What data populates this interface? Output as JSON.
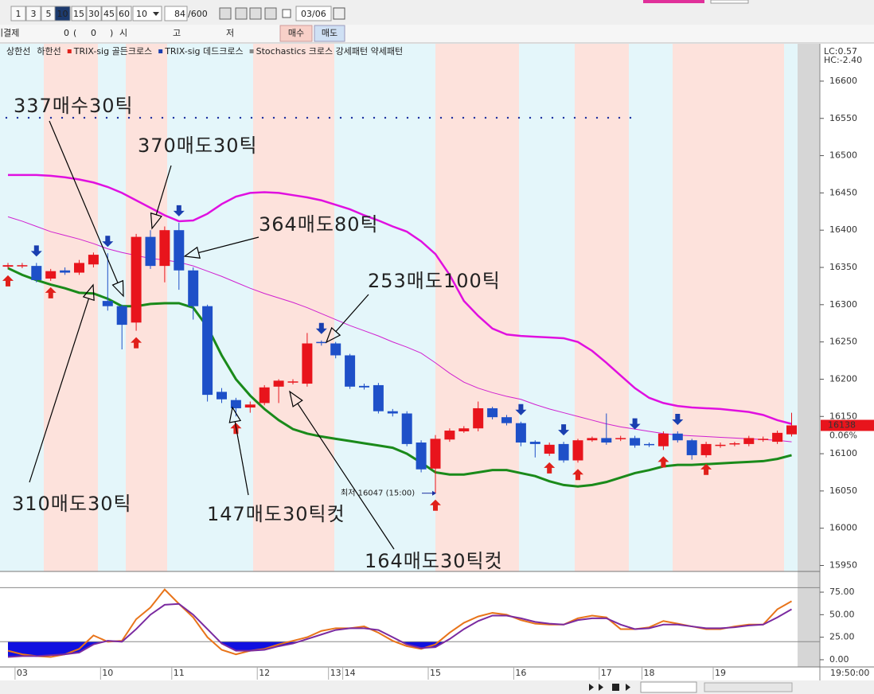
{
  "toolbar": {
    "periods": [
      1,
      3,
      5,
      10,
      15,
      30,
      45,
      60
    ],
    "period_select": 10,
    "count": 84,
    "count_max": "/600",
    "date": "03/06",
    "row2": {
      "open_interest": "미결제",
      "oi_value": "0",
      "paren_open": "(",
      "oi_change": "0",
      "paren_close": ")",
      "open": "시",
      "high": "고",
      "low": "저",
      "buy": "매수",
      "sell": "매도"
    }
  },
  "chart_data": [
    {
      "type": "candlestick",
      "legend": {
        "upper_text": "상한선",
        "lower_text": "하한선",
        "signals": [
          {
            "name": "TRIX-sig 골든크로스",
            "color": "#e0201a"
          },
          {
            "name": "TRIX-sig 데드크로스",
            "color": "#1a3fb0"
          }
        ],
        "pattern_text": "Stochastics 크로스 강세패턴  약세패턴"
      },
      "lc_label": "LC:0.57",
      "hc_label": "HC:-2.40",
      "categories": [
        null,
        "03",
        null,
        null,
        null,
        null,
        null,
        "10",
        null,
        null,
        null,
        null,
        "11",
        null,
        null,
        null,
        null,
        null,
        "12",
        null,
        null,
        null,
        null,
        "13",
        "14",
        null,
        null,
        null,
        null,
        null,
        "15",
        null,
        null,
        null,
        null,
        null,
        "16",
        null,
        null,
        null,
        null,
        null,
        "17",
        null,
        null,
        "18",
        null,
        null,
        null,
        null,
        "19",
        null,
        null,
        null,
        null,
        null
      ],
      "open": [
        16351,
        16352,
        16352,
        16335,
        16346,
        16343,
        16354,
        16305,
        16298,
        16276,
        16391,
        16352,
        16400,
        16346,
        16298,
        16183,
        16172,
        16162,
        16168,
        16190,
        16196,
        16194,
        16250,
        16248,
        16232,
        16191,
        16192,
        16157,
        16154,
        16115,
        16080,
        16119,
        16130,
        16134,
        16161,
        16149,
        16141,
        16116,
        16100,
        16113,
        16091,
        16118,
        16121,
        16120,
        16121,
        16113,
        16110,
        16127,
        16118,
        16098,
        16111,
        16113,
        16113,
        16119,
        16116,
        16126
      ],
      "high": [
        16356,
        16356,
        16356,
        16348,
        16350,
        16360,
        16370,
        16369,
        16300,
        16395,
        16400,
        16405,
        16410,
        16350,
        16300,
        16188,
        16175,
        16170,
        16192,
        16200,
        16200,
        16262,
        16252,
        16250,
        16234,
        16194,
        16195,
        16160,
        16157,
        16118,
        16125,
        16134,
        16137,
        16170,
        16163,
        16152,
        16143,
        16118,
        16115,
        16116,
        16120,
        16123,
        16154,
        16124,
        16124,
        16115,
        16130,
        16130,
        16120,
        16116,
        16115,
        16116,
        16124,
        16123,
        16131,
        16155
      ],
      "low": [
        16348,
        16349,
        16330,
        16332,
        16340,
        16340,
        16350,
        16292,
        16240,
        16265,
        16348,
        16330,
        16320,
        16280,
        16170,
        16168,
        16150,
        16155,
        16165,
        16168,
        16193,
        16190,
        16245,
        16228,
        16187,
        16186,
        16154,
        16150,
        16110,
        16075,
        16047,
        16116,
        16128,
        16130,
        16146,
        16138,
        16110,
        16095,
        16097,
        16088,
        16088,
        16116,
        16112,
        16117,
        16108,
        16109,
        16105,
        16115,
        16092,
        16095,
        16108,
        16110,
        16110,
        16116,
        16113,
        16123
      ],
      "close": [
        16353,
        16353,
        16333,
        16345,
        16343,
        16356,
        16367,
        16298,
        16273,
        16391,
        16352,
        16400,
        16346,
        16298,
        16179,
        16173,
        16161,
        16166,
        16189,
        16198,
        16197,
        16248,
        16249,
        16232,
        16190,
        16189,
        16157,
        16154,
        16113,
        16079,
        16120,
        16131,
        16134,
        16161,
        16149,
        16141,
        16115,
        16113,
        16112,
        16091,
        16118,
        16121,
        16115,
        16121,
        16111,
        16112,
        16127,
        16118,
        16098,
        16113,
        16112,
        16114,
        16121,
        16120,
        16128,
        16138
      ],
      "up_color": "#e8141c",
      "down_color": "#1e50c8",
      "series": [
        {
          "name": "상한선",
          "color": "#e010e0",
          "values": [
            16474,
            16474,
            16474,
            16473,
            16471,
            16468,
            16464,
            16458,
            16450,
            16440,
            16430,
            16420,
            16412,
            16413,
            16422,
            16435,
            16445,
            16450,
            16451,
            16450,
            16447,
            16444,
            16440,
            16434,
            16428,
            16420,
            16413,
            16405,
            16398,
            16385,
            16368,
            16340,
            16305,
            16285,
            16268,
            16260,
            16258,
            16257,
            16256,
            16255,
            16250,
            16238,
            16222,
            16205,
            16188,
            16175,
            16168,
            16164,
            16162,
            16161,
            16160,
            16158,
            16156,
            16152,
            16145,
            16140
          ]
        },
        {
          "color": "#d020d0",
          "values": [
            16418,
            16412,
            16405,
            16398,
            16393,
            16388,
            16382,
            16375,
            16370,
            16366,
            16362,
            16360,
            16357,
            16352,
            16345,
            16338,
            16330,
            16322,
            16315,
            16309,
            16303,
            16296,
            16288,
            16280,
            16272,
            16265,
            16258,
            16250,
            16243,
            16235,
            16222,
            16208,
            16196,
            16188,
            16182,
            16177,
            16173,
            16166,
            16160,
            16155,
            16150,
            16145,
            16140,
            16136,
            16133,
            16130,
            16127,
            16125,
            16124,
            16123,
            16122,
            16121,
            16120,
            16119,
            16118,
            16116
          ]
        },
        {
          "name": "하한선",
          "color": "#1a8a1a",
          "values": [
            16349,
            16340,
            16333,
            16327,
            16322,
            16316,
            16315,
            16308,
            16298,
            16298,
            16301,
            16302,
            16302,
            16296,
            16270,
            16232,
            16200,
            16178,
            16160,
            16145,
            16133,
            16127,
            16123,
            16120,
            16117,
            16114,
            16111,
            16108,
            16100,
            16088,
            16075,
            16072,
            16072,
            16075,
            16078,
            16078,
            16074,
            16070,
            16063,
            16058,
            16056,
            16058,
            16062,
            16068,
            16074,
            16078,
            16083,
            16085,
            16085,
            16086,
            16087,
            16088,
            16089,
            16090,
            16093,
            16098
          ]
        }
      ],
      "ylim": [
        15942,
        16648
      ],
      "yticks": [
        15950,
        16000,
        16050,
        16100,
        16150,
        16200,
        16250,
        16300,
        16350,
        16400,
        16450,
        16500,
        16550,
        16600
      ],
      "current_price": 16138,
      "change_label": "0.06%",
      "low_label": "최저 16047 (15:00)",
      "time_label": "19:50:00",
      "annotations": [
        {
          "text": "337매수30틱",
          "color": "#e0201a"
        },
        {
          "text": "370매도30틱",
          "color": "#2030c0"
        },
        {
          "text": "364매도80틱",
          "color": "#2030c0"
        },
        {
          "text": "253매도100틱",
          "color": "#2030c0"
        },
        {
          "text": "310매도30틱",
          "color": "#2030c0"
        },
        {
          "text": "147매도30틱컷",
          "color": "#2030c0"
        },
        {
          "text": "164매도30틱컷",
          "color": "#2030c0"
        }
      ]
    },
    {
      "type": "line",
      "series": [
        {
          "color": "#e8741a",
          "values": [
            10,
            6,
            4,
            3,
            6,
            12,
            27,
            20,
            21,
            45,
            58,
            78,
            62,
            47,
            25,
            11,
            6,
            10,
            12,
            17,
            21,
            25,
            32,
            35,
            35,
            37,
            30,
            21,
            15,
            12,
            17,
            30,
            41,
            48,
            52,
            50,
            44,
            40,
            39,
            39,
            46,
            49,
            47,
            34,
            34,
            36,
            43,
            40,
            37,
            34,
            34,
            37,
            39,
            39,
            56,
            65
          ]
        },
        {
          "color": "#7a2aa0",
          "values": [
            3,
            4,
            4,
            5,
            6,
            8,
            17,
            21,
            20,
            34,
            50,
            61,
            62,
            50,
            34,
            18,
            10,
            10,
            11,
            15,
            18,
            23,
            28,
            33,
            35,
            35,
            33,
            25,
            17,
            13,
            14,
            23,
            34,
            43,
            49,
            49,
            46,
            42,
            40,
            39,
            44,
            46,
            46,
            39,
            34,
            35,
            39,
            39,
            37,
            35,
            35,
            36,
            38,
            39,
            47,
            56
          ]
        }
      ],
      "levels": [
        20,
        80
      ],
      "fill_color": "#1010e0",
      "ylim": [
        -8,
        98
      ],
      "yticks": [
        {
          "value": 0,
          "label": "0.00"
        },
        {
          "value": 25,
          "label": "25.00"
        },
        {
          "value": 50,
          "label": "50.00"
        },
        {
          "value": 75,
          "label": "75.00"
        }
      ]
    }
  ]
}
